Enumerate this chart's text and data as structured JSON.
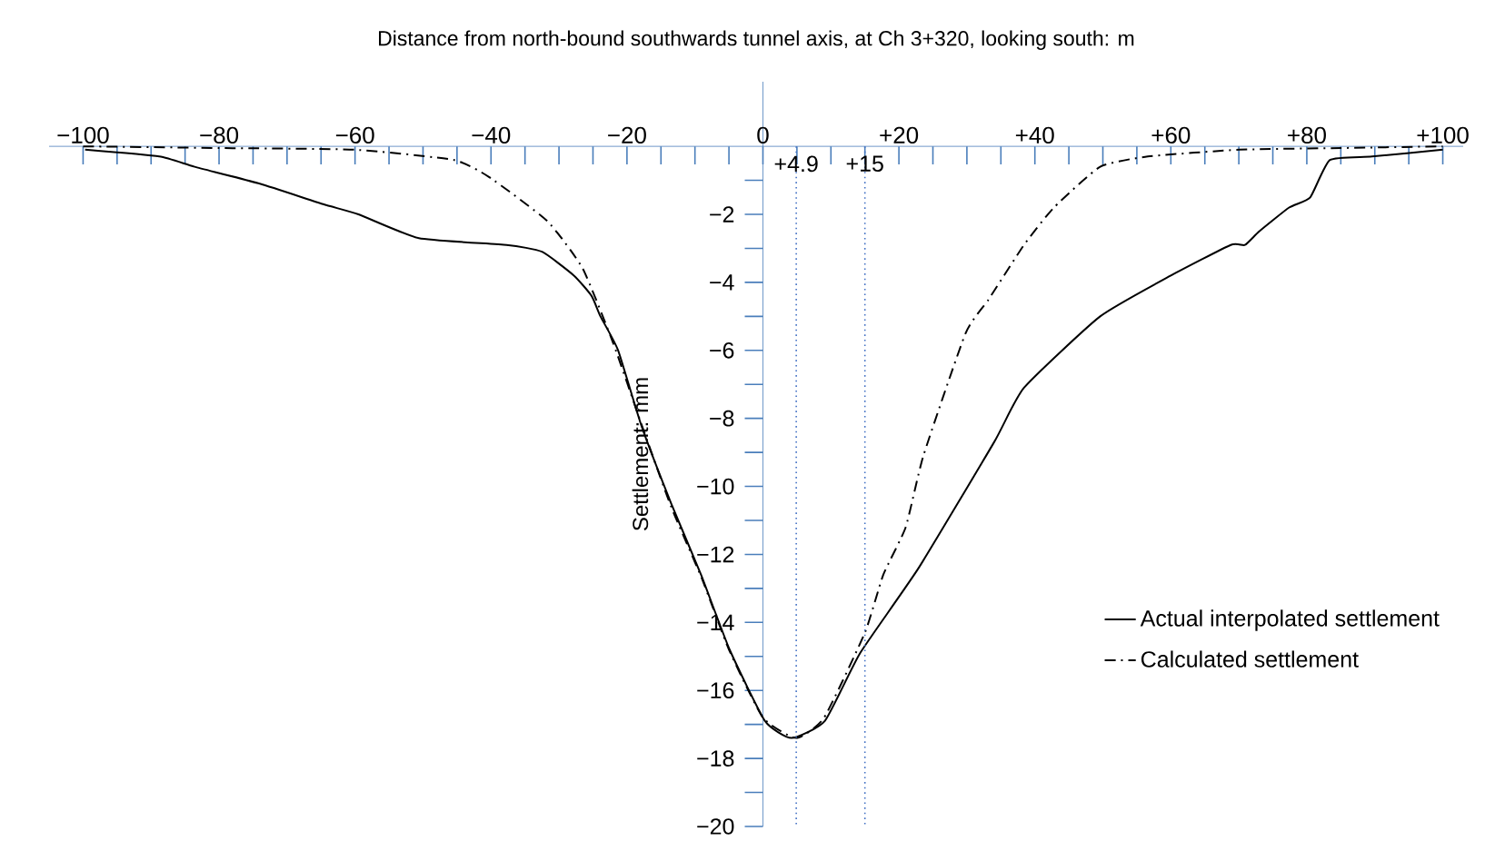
{
  "chart_data": {
    "type": "line",
    "xlabel": "Distance from north-bound southwards tunnel axis, at Ch 3+320, looking south: m",
    "ylabel": "Settlement: mm",
    "xlim": [
      -105,
      103
    ],
    "ylim": [
      -20,
      1.9
    ],
    "xticks": [
      {
        "value": -100,
        "label": "−100"
      },
      {
        "value": -95,
        "label": null
      },
      {
        "value": -90,
        "label": null
      },
      {
        "value": -85,
        "label": null
      },
      {
        "value": -80,
        "label": "−80"
      },
      {
        "value": -75,
        "label": null
      },
      {
        "value": -70,
        "label": null
      },
      {
        "value": -65,
        "label": null
      },
      {
        "value": -60,
        "label": "−60"
      },
      {
        "value": -55,
        "label": null
      },
      {
        "value": -50,
        "label": null
      },
      {
        "value": -45,
        "label": null
      },
      {
        "value": -40,
        "label": "−40"
      },
      {
        "value": -35,
        "label": null
      },
      {
        "value": -30,
        "label": null
      },
      {
        "value": -25,
        "label": null
      },
      {
        "value": -20,
        "label": "−20"
      },
      {
        "value": -15,
        "label": null
      },
      {
        "value": -10,
        "label": null
      },
      {
        "value": -5,
        "label": null
      },
      0,
      {
        "value": 5,
        "label": null
      },
      {
        "value": 10,
        "label": null
      },
      {
        "value": 15,
        "label": null
      },
      {
        "value": 20,
        "label": "+20"
      },
      {
        "value": 25,
        "label": null
      },
      {
        "value": 30,
        "label": null
      },
      {
        "value": 35,
        "label": null
      },
      {
        "value": 40,
        "label": "+40"
      },
      {
        "value": 45,
        "label": null
      },
      {
        "value": 50,
        "label": null
      },
      {
        "value": 55,
        "label": null
      },
      {
        "value": 60,
        "label": "+60"
      },
      {
        "value": 65,
        "label": null
      },
      {
        "value": 70,
        "label": null
      },
      {
        "value": 75,
        "label": null
      },
      {
        "value": 80,
        "label": "+80"
      },
      {
        "value": 85,
        "label": null
      },
      {
        "value": 90,
        "label": null
      },
      {
        "value": 95,
        "label": null
      },
      {
        "value": 100,
        "label": "+100"
      }
    ],
    "yticks": [
      {
        "value": -1,
        "label": null
      },
      {
        "value": -2,
        "label": "−2"
      },
      {
        "value": -3,
        "label": null
      },
      {
        "value": -4,
        "label": "−4"
      },
      {
        "value": -5,
        "label": null
      },
      {
        "value": -6,
        "label": "−6"
      },
      {
        "value": -7,
        "label": null
      },
      {
        "value": -8,
        "label": "−8"
      },
      {
        "value": -9,
        "label": null
      },
      {
        "value": -10,
        "label": "−10"
      },
      {
        "value": -11,
        "label": null
      },
      {
        "value": -12,
        "label": "−12"
      },
      {
        "value": -13,
        "label": null
      },
      {
        "value": -14,
        "label": "−14"
      },
      {
        "value": -15,
        "label": null
      },
      {
        "value": -16,
        "label": "−16"
      },
      {
        "value": -17,
        "label": null
      },
      {
        "value": -18,
        "label": "−18"
      },
      {
        "value": -19,
        "label": null
      },
      {
        "value": -20,
        "label": "−20"
      }
    ],
    "legend": "bottom right",
    "grid": false,
    "series": [
      {
        "name": "Actual interpolated settlement",
        "color": "#000000",
        "line_style": "solid",
        "x": [
          -99.7,
          -88.8,
          -83.6,
          -74,
          -64.7,
          -59.5,
          -50.6,
          -37.7,
          -32.5,
          -27.8,
          -25.2,
          -23.9,
          -21.3,
          -17.9,
          -13.5,
          -9.1,
          -4.9,
          0.3,
          4.2,
          9.1,
          14.3,
          22.9,
          34,
          38.4,
          49.6,
          60,
          68.8,
          70.9,
          73,
          77.4,
          80.5,
          83.4,
          89.6,
          100
        ],
        "values": [
          -0.1,
          -0.3,
          -0.6,
          -1.1,
          -1.7,
          -2.0,
          -2.7,
          -2.9,
          -3.1,
          -3.8,
          -4.4,
          -5.0,
          -6.0,
          -8.2,
          -10.5,
          -12.6,
          -14.8,
          -16.9,
          -17.4,
          -16.9,
          -14.9,
          -12.4,
          -8.7,
          -7.1,
          -5.0,
          -3.8,
          -2.9,
          -2.9,
          -2.5,
          -1.8,
          -1.5,
          -0.4,
          -0.3,
          -0.1
        ]
      },
      {
        "name": "Calculated settlement",
        "color": "#000000",
        "line_style": "dashdot",
        "x": [
          -100,
          -80,
          -60,
          -45.5,
          -40.3,
          -31.7,
          -26.5,
          -22,
          -18,
          -13.5,
          -9,
          -5,
          0,
          4.9,
          9,
          15,
          17.7,
          21,
          23.6,
          29.8,
          33.2,
          38.4,
          42.8,
          49.6,
          56.6,
          70,
          85,
          100
        ],
        "values": [
          0,
          -0.05,
          -0.1,
          -0.4,
          -0.9,
          -2.2,
          -3.6,
          -5.8,
          -8.1,
          -10.6,
          -12.7,
          -14.8,
          -16.8,
          -17.4,
          -16.8,
          -14.3,
          -12.6,
          -11.2,
          -9.1,
          -5.5,
          -4.5,
          -2.9,
          -1.8,
          -0.6,
          -0.3,
          -0.1,
          -0.05,
          0
        ]
      }
    ],
    "ref_lines": [
      {
        "axis": "x",
        "value": 4.9,
        "label": "+4.9",
        "color": "#4472c4",
        "line_style": "dotted"
      },
      {
        "axis": "x",
        "value": 15,
        "label": "+15",
        "color": "#4472c4",
        "line_style": "dotted"
      }
    ]
  }
}
